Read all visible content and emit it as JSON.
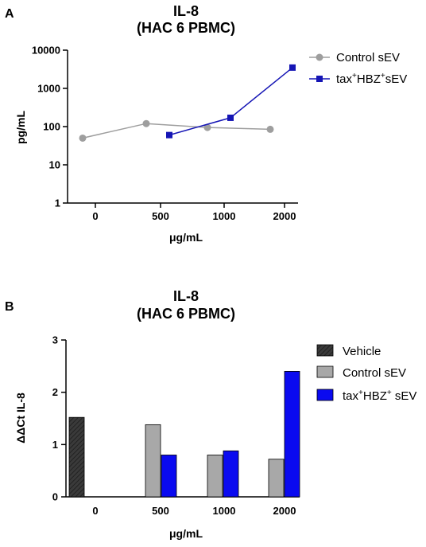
{
  "chart_data": [
    {
      "panel_label": "A",
      "type": "line",
      "title": "IL-8",
      "subtitle": "(HAC 6 PBMC)",
      "xlabel": "μg/mL",
      "ylabel": "pg/mL",
      "y_scale": "log",
      "ylim": [
        1,
        10000
      ],
      "y_ticks": [
        "1",
        "10",
        "100",
        "1000",
        "10000"
      ],
      "categories": [
        "0",
        "500",
        "1000",
        "2000"
      ],
      "legend_position": "right",
      "series": [
        {
          "name": "Control sEV",
          "marker": "circle",
          "color": "#9e9e9e",
          "points": [
            {
              "category": "0",
              "y": 50
            },
            {
              "category": "500",
              "y": 120
            },
            {
              "category": "1000",
              "y": 95
            },
            {
              "category": "2000",
              "y": 85
            }
          ]
        },
        {
          "name_parts": [
            "tax",
            "+",
            "HBZ",
            "+",
            "sEV"
          ],
          "marker": "square",
          "color": "#1515b5",
          "points": [
            {
              "category": "500",
              "y": 60
            },
            {
              "category": "1000",
              "y": 170
            },
            {
              "category": "2000",
              "y": 3500
            }
          ]
        }
      ]
    },
    {
      "panel_label": "B",
      "type": "bar",
      "title": "IL-8",
      "subtitle": "(HAC 6 PBMC)",
      "xlabel": "μg/mL",
      "ylabel": "ΔΔCt IL-8",
      "ylim": [
        0,
        3
      ],
      "y_ticks": [
        "0",
        "1",
        "2",
        "3"
      ],
      "categories": [
        "0",
        "500",
        "1000",
        "2000"
      ],
      "legend_position": "right",
      "series": [
        {
          "name": "Vehicle",
          "color": "#3a3a3a",
          "hatched": true,
          "values": [
            1.52,
            null,
            null,
            null
          ]
        },
        {
          "name": "Control sEV",
          "color": "#a8a8a8",
          "values": [
            null,
            1.38,
            0.8,
            0.72
          ]
        },
        {
          "name_parts": [
            "tax",
            "+",
            "HBZ",
            "+",
            " sEV"
          ],
          "color": "#0a0af0",
          "values": [
            null,
            0.8,
            0.88,
            2.4
          ]
        }
      ]
    }
  ]
}
